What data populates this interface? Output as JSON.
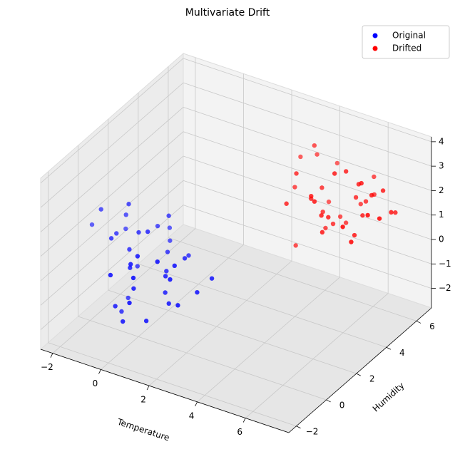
{
  "chart_data": {
    "type": "scatter3d",
    "title": "Multivariate Drift",
    "xlabel": "Temperature",
    "ylabel": "Humidity",
    "xlim": [
      -2.5,
      7.8
    ],
    "ylim": [
      -2.5,
      7
    ],
    "zlim": [
      -2.8,
      4.2
    ],
    "xticks": [
      {
        "value": -2,
        "label": "−2"
      },
      0,
      2,
      4,
      6
    ],
    "yticks": [
      {
        "value": -2,
        "label": "−2"
      },
      0,
      2,
      4,
      6
    ],
    "zticks": [
      {
        "value": -2,
        "label": "−2"
      },
      {
        "value": -1,
        "label": "−1"
      },
      0,
      1,
      2,
      3,
      4
    ],
    "grid": true,
    "legend": "upper right",
    "series": [
      {
        "name": "Original",
        "color": "#0000ff",
        "x": [
          -0.5,
          0.3,
          -1.2,
          0.8,
          1.5,
          -0.2,
          0.1,
          -1.8,
          0.6,
          1.1,
          -0.7,
          0.4,
          -0.1,
          2.0,
          -1.0,
          0.9,
          0.2,
          -0.4,
          1.3,
          -2.3,
          0.5,
          -0.9,
          0.0,
          1.7,
          -0.3,
          0.7,
          -1.4,
          0.3,
          1.0,
          -0.6,
          0.2,
          -0.1,
          1.2,
          -1.1,
          0.6,
          2.3,
          -0.8,
          0.4,
          -0.2,
          1.5
        ],
        "y": [
          0.2,
          -0.8,
          1.1,
          0.5,
          -0.3,
          1.6,
          -1.2,
          0.4,
          0.9,
          -0.5,
          0.0,
          1.3,
          -1.7,
          0.7,
          -0.2,
          1.9,
          0.3,
          -0.9,
          1.0,
          0.6,
          -1.4,
          0.8,
          2.1,
          -0.1,
          0.5,
          -0.6,
          1.4,
          -1.0,
          0.2,
          0.9,
          1.7,
          -0.4,
          0.1,
          0.3,
          -1.3,
          1.2,
          0.6,
          -0.7,
          2.4,
          0.0
        ],
        "z": [
          0.5,
          -0.3,
          1.2,
          -1.0,
          0.2,
          0.8,
          -1.5,
          1.6,
          -0.4,
          0.9,
          -2.0,
          0.1,
          0.6,
          -0.7,
          1.0,
          -0.2,
          1.4,
          -1.2,
          0.3,
          0.7,
          -0.5,
          1.9,
          0.0,
          -0.9,
          1.1,
          -1.6,
          0.4,
          0.8,
          -0.1,
          -0.6,
          1.3,
          0.2,
          -1.1,
          0.9,
          0.5,
          -0.3,
          -1.8,
          1.0,
          0.3,
          0.6
        ]
      },
      {
        "name": "Drifted",
        "color": "#ff0000",
        "x": [
          4.5,
          5.2,
          3.8,
          6.1,
          5.6,
          4.0,
          6.8,
          5.0,
          4.7,
          3.5,
          5.9,
          6.4,
          4.2,
          5.4,
          7.0,
          4.9,
          3.9,
          5.7,
          6.2,
          4.4,
          5.1,
          6.6,
          3.6,
          5.3,
          4.8,
          6.0,
          7.2,
          4.1,
          5.5,
          6.3,
          4.6,
          3.3,
          5.8,
          6.9,
          5.0,
          4.3,
          6.5,
          5.2,
          4.0,
          5.6
        ],
        "y": [
          5.0,
          4.3,
          5.8,
          4.6,
          5.5,
          4.1,
          6.2,
          3.7,
          5.9,
          4.8,
          5.2,
          3.9,
          6.5,
          4.4,
          5.6,
          5.1,
          3.6,
          6.0,
          4.9,
          5.4,
          4.0,
          5.7,
          4.7,
          6.3,
          3.8,
          5.3,
          4.5,
          6.1,
          5.0,
          3.5,
          4.9,
          5.5,
          6.4,
          4.2,
          5.8,
          4.6,
          5.1,
          3.9,
          5.3,
          6.7
        ],
        "z": [
          2.1,
          1.5,
          2.8,
          0.9,
          1.8,
          3.0,
          1.2,
          2.4,
          0.5,
          1.9,
          2.6,
          1.1,
          2.2,
          3.3,
          1.6,
          0.7,
          2.0,
          1.4,
          2.9,
          0.2,
          1.7,
          2.3,
          -0.4,
          1.0,
          2.5,
          1.3,
          2.0,
          0.8,
          3.1,
          1.9,
          1.2,
          2.7,
          1.5,
          2.2,
          0.4,
          1.8,
          2.4,
          1.1,
          3.5,
          2.0
        ]
      }
    ]
  }
}
